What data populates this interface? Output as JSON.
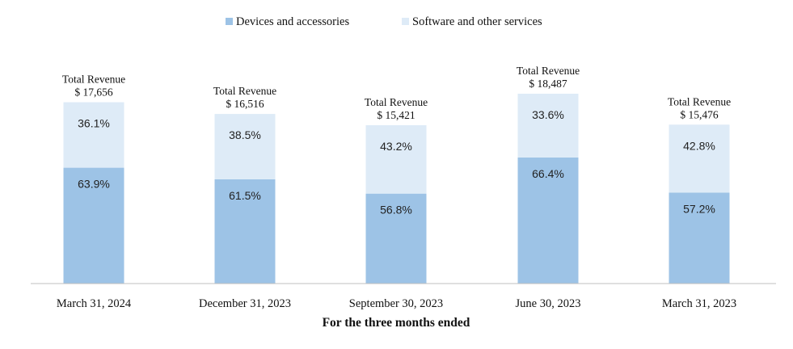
{
  "chart_data": {
    "type": "bar",
    "stacked": true,
    "normalized": true,
    "title": "",
    "xlabel": "For the three months ended",
    "ylabel": "",
    "legend_position": "top-center",
    "categories": [
      "March 31, 2024",
      "December 31, 2023",
      "September 30, 2023",
      "June 30, 2023",
      "March 31, 2023"
    ],
    "totals_label": "Total Revenue",
    "totals": [
      "$ 17,656",
      "$ 16,516",
      "$ 15,421",
      "$ 18,487",
      "$ 15,476"
    ],
    "total_values": [
      17656,
      16516,
      15421,
      18487,
      15476
    ],
    "series": [
      {
        "name": "Devices and accessories",
        "color": "#9dc3e6",
        "values": [
          63.9,
          61.5,
          56.8,
          66.4,
          57.2
        ],
        "labels": [
          "63.9%",
          "61.5%",
          "56.8%",
          "66.4%",
          "57.2%"
        ]
      },
      {
        "name": "Software and other services",
        "color": "#deebf7",
        "values": [
          36.1,
          38.5,
          43.2,
          33.6,
          42.8
        ],
        "labels": [
          "36.1%",
          "38.5%",
          "43.2%",
          "33.6%",
          "42.8%"
        ]
      }
    ],
    "axis_color": "#bfbfbf"
  }
}
